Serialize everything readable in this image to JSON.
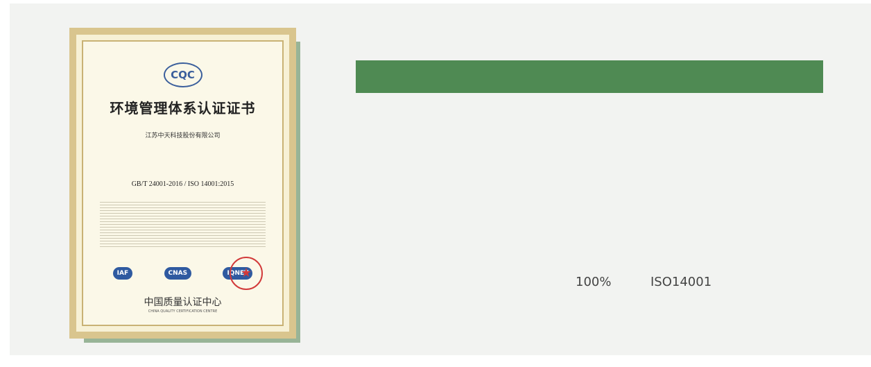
{
  "certificate": {
    "logo": "CQC",
    "title": "环境管理体系认证证书",
    "company": "江苏中天科技股份有限公司",
    "standard": "GB/T 24001-2016 / ISO 14001:2015",
    "badges": [
      "IAF",
      "CNAS",
      "IQNET"
    ],
    "issuer": "中国质量认证中心",
    "issuer_en": "CHINA QUALITY CERTIFICATION CENTRE"
  },
  "stats": {
    "percent": "100%",
    "standard": "ISO14001"
  }
}
